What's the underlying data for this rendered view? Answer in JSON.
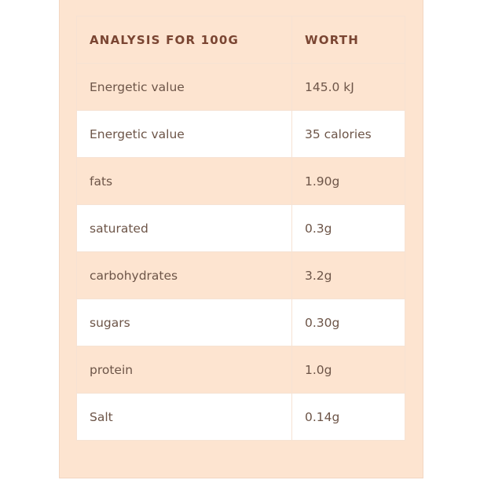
{
  "table": {
    "headers": [
      "ANALYSIS FOR 100G",
      "WORTH"
    ],
    "rows": [
      [
        "Energetic value",
        "145.0 kJ"
      ],
      [
        "Energetic value",
        "35 calories"
      ],
      [
        "fats",
        "1.90g"
      ],
      [
        "saturated",
        "0.3g"
      ],
      [
        "carbohydrates",
        "3.2g"
      ],
      [
        "sugars",
        "0.30g"
      ],
      [
        "protein",
        "1.0g"
      ],
      [
        "Salt",
        "0.14g"
      ]
    ]
  }
}
